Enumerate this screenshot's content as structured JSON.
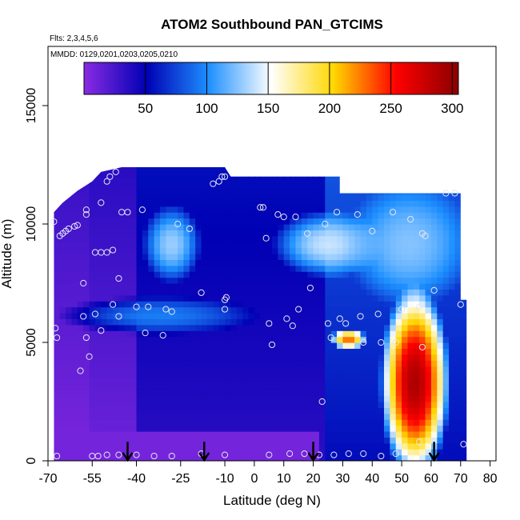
{
  "chart_data": {
    "type": "heatmap",
    "title": "ATOM2 Southbound PAN_GTCIMS",
    "subtitle_flights": "Flts: 2,3,4,5,6",
    "subtitle_dates": "MMDD: 0129,0201,0203,0205,0210",
    "xlabel": "Latitude (deg N)",
    "ylabel": "Altitude (m)",
    "xlim": [
      -70,
      82
    ],
    "ylim": [
      0,
      17500
    ],
    "x_ticks": [
      -70,
      -55,
      -40,
      -25,
      -10,
      0,
      10,
      20,
      30,
      40,
      50,
      60,
      70,
      80
    ],
    "x_tick_labels": [
      "-70",
      "-55",
      "-40",
      "-25",
      "-10",
      "0",
      "10",
      "20",
      "30",
      "40",
      "50",
      "60",
      "70",
      "80"
    ],
    "y_ticks": [
      0,
      5000,
      10000,
      15000
    ],
    "y_tick_labels": [
      "0",
      "5000",
      "10000",
      "15000"
    ],
    "colorbar": {
      "range": [
        0,
        305
      ],
      "ticks": [
        50,
        100,
        150,
        200,
        250,
        300
      ],
      "tick_labels": [
        "50",
        "100",
        "150",
        "200",
        "250",
        "300"
      ],
      "colors": [
        "#8a2be2",
        "#0000b4",
        "#1e90ff",
        "#ffffff",
        "#ffd700",
        "#ff0000",
        "#8b0000"
      ]
    },
    "flight_arrows_lat": [
      -43,
      -17,
      20,
      61
    ],
    "curtain_top": [
      {
        "lat": -68,
        "alt": 10500
      },
      {
        "lat": -65,
        "alt": 10900
      },
      {
        "lat": -60,
        "alt": 11400
      },
      {
        "lat": -55,
        "alt": 11800
      },
      {
        "lat": -52,
        "alt": 12200
      },
      {
        "lat": -45,
        "alt": 12400
      },
      {
        "lat": -10,
        "alt": 12400
      },
      {
        "lat": -8,
        "alt": 12000
      },
      {
        "lat": 29,
        "alt": 12000
      },
      {
        "lat": 29,
        "alt": 11300
      },
      {
        "lat": 70,
        "alt": 11300
      },
      {
        "lat": 70,
        "alt": 6800
      },
      {
        "lat": 72,
        "alt": 6800
      },
      {
        "lat": 72,
        "alt": 0
      }
    ],
    "curtain_left_lat": -68,
    "features": [
      {
        "name": "southern-high-band",
        "lat_min": -36,
        "lat_max": -20,
        "alt_min": 7800,
        "alt_max": 10500,
        "value": 130
      },
      {
        "name": "southern-mid-band",
        "lat_min": -60,
        "lat_max": -5,
        "alt_min": 5500,
        "alt_max": 6800,
        "value": 95
      },
      {
        "name": "tropical-upper-pocket",
        "lat_min": 10,
        "lat_max": 40,
        "alt_min": 8000,
        "alt_max": 10300,
        "value": 140
      },
      {
        "name": "northern-upper",
        "lat_min": 35,
        "lat_max": 70,
        "alt_min": 7000,
        "alt_max": 11300,
        "value": 125
      },
      {
        "name": "northern-midlevel-streak",
        "lat_min": 27,
        "lat_max": 37,
        "alt_min": 4800,
        "alt_max": 5500,
        "value": 230
      },
      {
        "name": "northern-boundary-layer-plume",
        "lat_min": 45,
        "lat_max": 64,
        "alt_min": 0,
        "alt_max": 6600,
        "value": 290
      }
    ],
    "observations": [
      {
        "lat": -67.5,
        "alt": 5600
      },
      {
        "lat": -67,
        "alt": 5200
      },
      {
        "lat": -67,
        "alt": 200
      },
      {
        "lat": -68,
        "alt": 10100
      },
      {
        "lat": -66,
        "alt": 9500
      },
      {
        "lat": -65,
        "alt": 9600
      },
      {
        "lat": -64,
        "alt": 9700
      },
      {
        "lat": -63,
        "alt": 9800
      },
      {
        "lat": -61,
        "alt": 9900
      },
      {
        "lat": -60,
        "alt": 9950
      },
      {
        "lat": -57,
        "alt": 10400
      },
      {
        "lat": -57,
        "alt": 10600
      },
      {
        "lat": -52,
        "alt": 10900
      },
      {
        "lat": -50,
        "alt": 11800
      },
      {
        "lat": -49,
        "alt": 12000
      },
      {
        "lat": -47,
        "alt": 12200
      },
      {
        "lat": -58,
        "alt": 7500
      },
      {
        "lat": -58,
        "alt": 6100
      },
      {
        "lat": -54,
        "alt": 6200
      },
      {
        "lat": -52,
        "alt": 5500
      },
      {
        "lat": -57,
        "alt": 5200
      },
      {
        "lat": -56,
        "alt": 4400
      },
      {
        "lat": -59,
        "alt": 3800
      },
      {
        "lat": -54,
        "alt": 8800
      },
      {
        "lat": -52,
        "alt": 8800
      },
      {
        "lat": -50,
        "alt": 8800
      },
      {
        "lat": -48,
        "alt": 8900
      },
      {
        "lat": -46,
        "alt": 7700
      },
      {
        "lat": -48,
        "alt": 6600
      },
      {
        "lat": -46,
        "alt": 6100
      },
      {
        "lat": -45,
        "alt": 10500
      },
      {
        "lat": -43,
        "alt": 10500
      },
      {
        "lat": -38,
        "alt": 10600
      },
      {
        "lat": -40,
        "alt": 6500
      },
      {
        "lat": -36,
        "alt": 6500
      },
      {
        "lat": -30,
        "alt": 6400
      },
      {
        "lat": -28,
        "alt": 6300
      },
      {
        "lat": -37,
        "alt": 5400
      },
      {
        "lat": -31,
        "alt": 5300
      },
      {
        "lat": -26,
        "alt": 10000
      },
      {
        "lat": -22,
        "alt": 9800
      },
      {
        "lat": -18,
        "alt": 7100
      },
      {
        "lat": -14,
        "alt": 11700
      },
      {
        "lat": -12,
        "alt": 11800
      },
      {
        "lat": -11,
        "alt": 12000
      },
      {
        "lat": -10,
        "alt": 12000
      },
      {
        "lat": -10,
        "alt": 6400
      },
      {
        "lat": -10,
        "alt": 6800
      },
      {
        "lat": -9.5,
        "alt": 6900
      },
      {
        "lat": 2,
        "alt": 10700
      },
      {
        "lat": 3,
        "alt": 10700
      },
      {
        "lat": 4,
        "alt": 9400
      },
      {
        "lat": 5,
        "alt": 5800
      },
      {
        "lat": 6,
        "alt": 4900
      },
      {
        "lat": 8,
        "alt": 10400
      },
      {
        "lat": 10,
        "alt": 10300
      },
      {
        "lat": 11,
        "alt": 6000
      },
      {
        "lat": 13,
        "alt": 5700
      },
      {
        "lat": 14,
        "alt": 10300
      },
      {
        "lat": 15,
        "alt": 6400
      },
      {
        "lat": 18,
        "alt": 9600
      },
      {
        "lat": 19,
        "alt": 7300
      },
      {
        "lat": 24,
        "alt": 10000
      },
      {
        "lat": 23,
        "alt": 2500
      },
      {
        "lat": 25,
        "alt": 5800
      },
      {
        "lat": 26,
        "alt": 5200
      },
      {
        "lat": 28,
        "alt": 10500
      },
      {
        "lat": 29,
        "alt": 6000
      },
      {
        "lat": 31,
        "alt": 5800
      },
      {
        "lat": 35,
        "alt": 10400
      },
      {
        "lat": 36,
        "alt": 6100
      },
      {
        "lat": 37,
        "alt": 5000
      },
      {
        "lat": 40,
        "alt": 9700
      },
      {
        "lat": 42,
        "alt": 6200
      },
      {
        "lat": 43,
        "alt": 5000
      },
      {
        "lat": 47,
        "alt": 10500
      },
      {
        "lat": 48,
        "alt": 5000
      },
      {
        "lat": 50,
        "alt": 6400
      },
      {
        "lat": 53,
        "alt": 10200
      },
      {
        "lat": 56,
        "alt": 6500
      },
      {
        "lat": 57,
        "alt": 4800
      },
      {
        "lat": 57,
        "alt": 9600
      },
      {
        "lat": 58,
        "alt": 9500
      },
      {
        "lat": 61,
        "alt": 7200
      },
      {
        "lat": 65,
        "alt": 11300
      },
      {
        "lat": 68,
        "alt": 11300
      },
      {
        "lat": 70,
        "alt": 6600
      },
      {
        "lat": 56,
        "alt": 800
      },
      {
        "lat": 71,
        "alt": 700
      },
      {
        "lat": -55,
        "alt": 200
      },
      {
        "lat": -53,
        "alt": 200
      },
      {
        "lat": -50,
        "alt": 250
      },
      {
        "lat": -46,
        "alt": 250
      },
      {
        "lat": -40,
        "alt": 250
      },
      {
        "lat": -34,
        "alt": 200
      },
      {
        "lat": -28,
        "alt": 200
      },
      {
        "lat": -18,
        "alt": 300
      },
      {
        "lat": -10,
        "alt": 250
      },
      {
        "lat": 5,
        "alt": 250
      },
      {
        "lat": 12,
        "alt": 300
      },
      {
        "lat": 17,
        "alt": 300
      },
      {
        "lat": 22,
        "alt": 250
      },
      {
        "lat": 27,
        "alt": 250
      },
      {
        "lat": 32,
        "alt": 300
      },
      {
        "lat": 37,
        "alt": 300
      },
      {
        "lat": 43,
        "alt": 200
      },
      {
        "lat": 48,
        "alt": 300
      }
    ]
  }
}
